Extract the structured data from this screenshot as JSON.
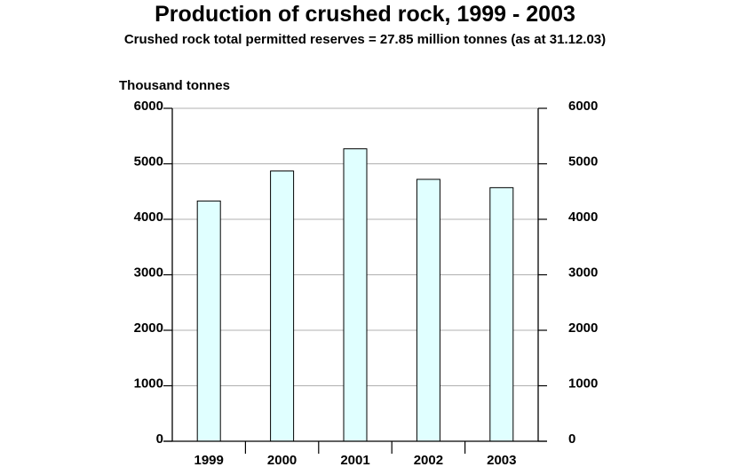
{
  "title": "Production of crushed rock, 1999 - 2003",
  "subtitle": "Crushed rock total permitted reserves =  27.85 million tonnes (as at 31.12.03)",
  "chart_data": {
    "type": "bar",
    "title": "Production of crushed rock, 1999 - 2003",
    "subtitle": "Crushed rock total permitted reserves =  27.85 million tonnes (as at 31.12.03)",
    "ylabel": "Thousand tonnes",
    "xlabel": "",
    "categories": [
      "1999",
      "2000",
      "2001",
      "2002",
      "2003"
    ],
    "values": [
      4330,
      4870,
      5270,
      4720,
      4570
    ],
    "ylim": [
      0,
      6000
    ],
    "yticks": [
      0,
      1000,
      2000,
      3000,
      4000,
      5000,
      6000
    ],
    "grid": true,
    "right_axis": true,
    "colors": {
      "bar_fill": "#e0ffff",
      "bar_stroke": "#000000",
      "grid": "#b0b0b0"
    }
  }
}
